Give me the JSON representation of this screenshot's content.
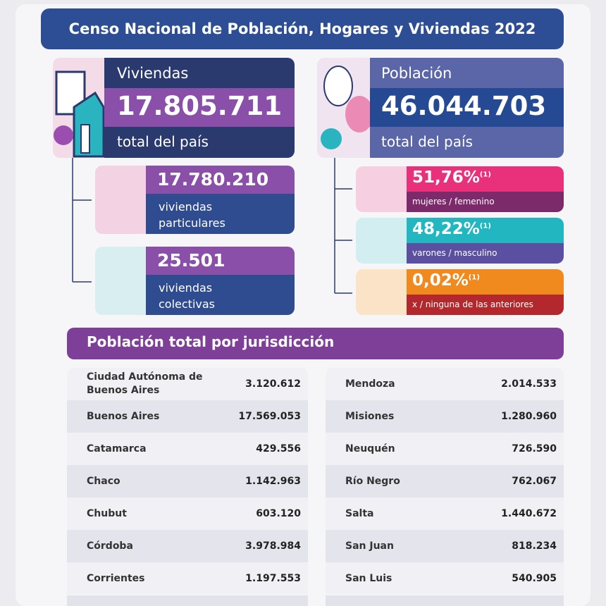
{
  "header": {
    "title": "Censo Nacional de Población, Hogares y Viviendas 2022"
  },
  "viviendas": {
    "label": "Viviendas",
    "value": "17.805.711",
    "sub": "total del país"
  },
  "poblacion": {
    "label": "Población",
    "value": "46.044.703",
    "sub": "total del país"
  },
  "tipos": [
    {
      "value": "17.780.210",
      "lines": [
        "viviendas",
        "particulares"
      ]
    },
    {
      "value": "25.501",
      "lines": [
        "viviendas",
        "colectivas"
      ]
    }
  ],
  "generos": [
    {
      "value": "51,76%",
      "note": "(1)",
      "label": "mujeres / femenino"
    },
    {
      "value": "48,22%",
      "note": "(1)",
      "label": "varones / masculino"
    },
    {
      "value": "0,02%",
      "note": "(1)",
      "label": "x / ninguna de las anteriores"
    }
  ],
  "table": {
    "title": "Población total por jurisdicción",
    "left": [
      [
        "Ciudad Autónoma de Buenos Aires",
        "3.120.612"
      ],
      [
        "Buenos Aires",
        "17.569.053"
      ],
      [
        "Catamarca",
        "429.556"
      ],
      [
        "Chaco",
        "1.142.963"
      ],
      [
        "Chubut",
        "603.120"
      ],
      [
        "Córdoba",
        "3.978.984"
      ],
      [
        "Corrientes",
        "1.197.553"
      ]
    ],
    "right": [
      [
        "Mendoza",
        "2.014.533"
      ],
      [
        "Misiones",
        "1.280.960"
      ],
      [
        "Neuquén",
        "726.590"
      ],
      [
        "Río Negro",
        "762.067"
      ],
      [
        "Salta",
        "1.440.672"
      ],
      [
        "San Juan",
        "818.234"
      ],
      [
        "San Luis",
        "540.905"
      ]
    ]
  }
}
